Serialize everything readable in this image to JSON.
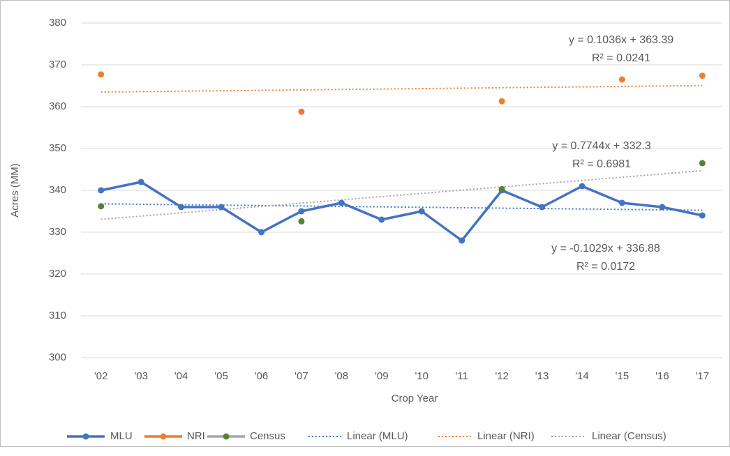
{
  "chart_data": {
    "type": "line",
    "x_label": "Crop Year",
    "y_label": "Acres (MM)",
    "categories": [
      "'02",
      "'03",
      "'04",
      "'05",
      "'06",
      "'07",
      "'08",
      "'09",
      "'10",
      "'11",
      "'12",
      "'13",
      "'14",
      "'15",
      "'16",
      "'17"
    ],
    "series": [
      {
        "name": "MLU",
        "color": "#4472c4",
        "marker_color": "#4472c4",
        "values": [
          340,
          342,
          336,
          336,
          330,
          335,
          337,
          333,
          335,
          328,
          340,
          336,
          341,
          337,
          336,
          334
        ]
      },
      {
        "name": "NRI",
        "color": "#ed7d31",
        "marker_color": "#ed7d31",
        "values": [
          367.7,
          null,
          null,
          null,
          null,
          358.8,
          null,
          null,
          null,
          null,
          361.3,
          null,
          null,
          366.5,
          null,
          367.4
        ]
      },
      {
        "name": "Census",
        "color": "#a5a5a5",
        "marker_color": "#548235",
        "values": [
          336.2,
          null,
          null,
          null,
          null,
          332.6,
          null,
          null,
          null,
          null,
          340.3,
          null,
          null,
          null,
          null,
          346.5
        ]
      }
    ],
    "trendlines": [
      {
        "name": "Linear (MLU)",
        "color": "#4472c4",
        "slope": -0.1029,
        "intercept": 336.88,
        "equation": "y = -0.1029x + 336.88",
        "r2": "R² = 0.0172"
      },
      {
        "name": "Linear (NRI)",
        "color": "#ed7d31",
        "slope": 0.1036,
        "intercept": 363.39,
        "equation": "y = 0.1036x + 363.39",
        "r2": "R² = 0.0241"
      },
      {
        "name": "Linear (Census)",
        "color": "#a5a5a5",
        "slope": 0.7744,
        "intercept": 332.3,
        "equation": "y = 0.7744x + 332.3",
        "r2": "R² = 0.6981"
      }
    ],
    "ylim": [
      300,
      380
    ],
    "yticks": [
      300,
      310,
      320,
      330,
      340,
      350,
      360,
      370,
      380
    ],
    "grid": true
  }
}
